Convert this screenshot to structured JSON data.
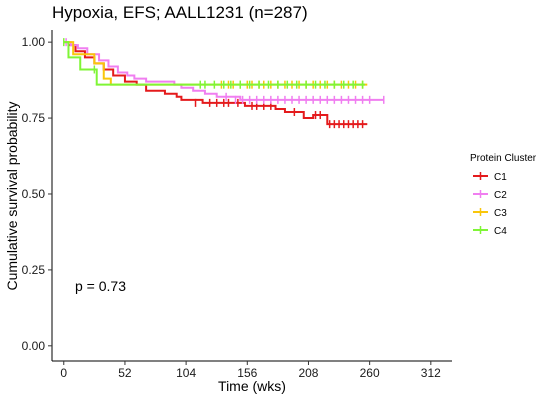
{
  "chart_data": {
    "type": "line",
    "subtype": "kaplan-meier",
    "title": "Hypoxia, EFS; AALL1231 (n=287)",
    "xlabel": "Time (wks)",
    "ylabel": "Cumulative survival probability",
    "xlim": [
      -10,
      330
    ],
    "ylim": [
      -0.05,
      1.04
    ],
    "x_ticks": [
      0,
      52,
      104,
      156,
      208,
      260,
      312
    ],
    "x_tick_labels": [
      "0",
      "52",
      "104",
      "156",
      "208",
      "260",
      "312"
    ],
    "y_ticks": [
      0.0,
      0.25,
      0.5,
      0.75,
      1.0
    ],
    "y_tick_labels": [
      "0.00",
      "0.25",
      "0.50",
      "0.75",
      "1.00"
    ],
    "grid": false,
    "annotation": "p = 0.73",
    "legend": {
      "title": "Protein Cluster",
      "position": "right"
    },
    "series": [
      {
        "name": "C1",
        "color": "#e41a1c",
        "steps": [
          [
            0,
            1.0
          ],
          [
            4,
            0.99
          ],
          [
            10,
            0.97
          ],
          [
            18,
            0.95
          ],
          [
            26,
            0.93
          ],
          [
            34,
            0.91
          ],
          [
            42,
            0.89
          ],
          [
            52,
            0.87
          ],
          [
            62,
            0.86
          ],
          [
            70,
            0.84
          ],
          [
            86,
            0.83
          ],
          [
            96,
            0.82
          ],
          [
            100,
            0.81
          ],
          [
            104,
            0.81
          ],
          [
            118,
            0.8
          ],
          [
            150,
            0.8
          ],
          [
            154,
            0.79
          ],
          [
            180,
            0.78
          ],
          [
            188,
            0.77
          ],
          [
            204,
            0.75
          ],
          [
            212,
            0.76
          ],
          [
            224,
            0.73
          ],
          [
            258,
            0.73
          ]
        ],
        "censored": [
          [
            112,
            0.8
          ],
          [
            124,
            0.8
          ],
          [
            130,
            0.8
          ],
          [
            136,
            0.8
          ],
          [
            140,
            0.8
          ],
          [
            148,
            0.8
          ],
          [
            160,
            0.79
          ],
          [
            164,
            0.79
          ],
          [
            170,
            0.79
          ],
          [
            176,
            0.79
          ],
          [
            196,
            0.77
          ],
          [
            214,
            0.76
          ],
          [
            218,
            0.76
          ],
          [
            226,
            0.73
          ],
          [
            230,
            0.73
          ],
          [
            234,
            0.73
          ],
          [
            238,
            0.73
          ],
          [
            242,
            0.73
          ],
          [
            246,
            0.73
          ],
          [
            250,
            0.73
          ],
          [
            254,
            0.73
          ]
        ]
      },
      {
        "name": "C2",
        "color": "#f07ef0",
        "steps": [
          [
            0,
            1.0
          ],
          [
            6,
            0.99
          ],
          [
            12,
            0.98
          ],
          [
            20,
            0.96
          ],
          [
            30,
            0.94
          ],
          [
            38,
            0.92
          ],
          [
            46,
            0.9
          ],
          [
            54,
            0.89
          ],
          [
            60,
            0.88
          ],
          [
            70,
            0.87
          ],
          [
            94,
            0.86
          ],
          [
            100,
            0.85
          ],
          [
            110,
            0.84
          ],
          [
            120,
            0.83
          ],
          [
            130,
            0.82
          ],
          [
            150,
            0.81
          ],
          [
            272,
            0.81
          ]
        ],
        "censored": [
          [
            2,
            1.0
          ],
          [
            138,
            0.82
          ],
          [
            146,
            0.81
          ],
          [
            152,
            0.81
          ],
          [
            158,
            0.81
          ],
          [
            164,
            0.81
          ],
          [
            170,
            0.81
          ],
          [
            176,
            0.81
          ],
          [
            182,
            0.81
          ],
          [
            188,
            0.81
          ],
          [
            194,
            0.81
          ],
          [
            200,
            0.81
          ],
          [
            206,
            0.81
          ],
          [
            212,
            0.81
          ],
          [
            218,
            0.81
          ],
          [
            224,
            0.81
          ],
          [
            230,
            0.81
          ],
          [
            236,
            0.81
          ],
          [
            242,
            0.81
          ],
          [
            248,
            0.81
          ],
          [
            254,
            0.81
          ],
          [
            260,
            0.81
          ],
          [
            272,
            0.81
          ]
        ]
      },
      {
        "name": "C3",
        "color": "#f9c60b",
        "steps": [
          [
            0,
            1.0
          ],
          [
            8,
            0.96
          ],
          [
            26,
            0.93
          ],
          [
            34,
            0.88
          ],
          [
            40,
            0.86
          ],
          [
            258,
            0.86
          ]
        ],
        "censored": [
          [
            134,
            0.86
          ],
          [
            140,
            0.86
          ],
          [
            144,
            0.86
          ],
          [
            150,
            0.86
          ],
          [
            156,
            0.86
          ],
          [
            160,
            0.86
          ],
          [
            166,
            0.86
          ],
          [
            170,
            0.86
          ],
          [
            176,
            0.86
          ],
          [
            182,
            0.86
          ],
          [
            188,
            0.86
          ],
          [
            194,
            0.86
          ],
          [
            200,
            0.86
          ],
          [
            206,
            0.86
          ],
          [
            212,
            0.86
          ],
          [
            218,
            0.86
          ],
          [
            224,
            0.86
          ],
          [
            230,
            0.86
          ],
          [
            236,
            0.86
          ],
          [
            242,
            0.86
          ],
          [
            248,
            0.86
          ],
          [
            254,
            0.86
          ]
        ]
      },
      {
        "name": "C4",
        "color": "#7ff536",
        "steps": [
          [
            0,
            1.0
          ],
          [
            4,
            0.95
          ],
          [
            14,
            0.91
          ],
          [
            28,
            0.86
          ],
          [
            256,
            0.86
          ]
        ],
        "censored": [
          [
            0,
            1.0
          ],
          [
            26,
            0.91
          ],
          [
            116,
            0.86
          ],
          [
            120,
            0.86
          ],
          [
            128,
            0.86
          ],
          [
            136,
            0.86
          ],
          [
            142,
            0.86
          ],
          [
            150,
            0.86
          ],
          [
            158,
            0.86
          ],
          [
            166,
            0.86
          ],
          [
            174,
            0.86
          ],
          [
            182,
            0.86
          ],
          [
            190,
            0.86
          ],
          [
            198,
            0.86
          ],
          [
            206,
            0.86
          ],
          [
            214,
            0.86
          ],
          [
            222,
            0.86
          ],
          [
            230,
            0.86
          ],
          [
            238,
            0.86
          ],
          [
            246,
            0.86
          ],
          [
            254,
            0.86
          ]
        ]
      }
    ]
  }
}
